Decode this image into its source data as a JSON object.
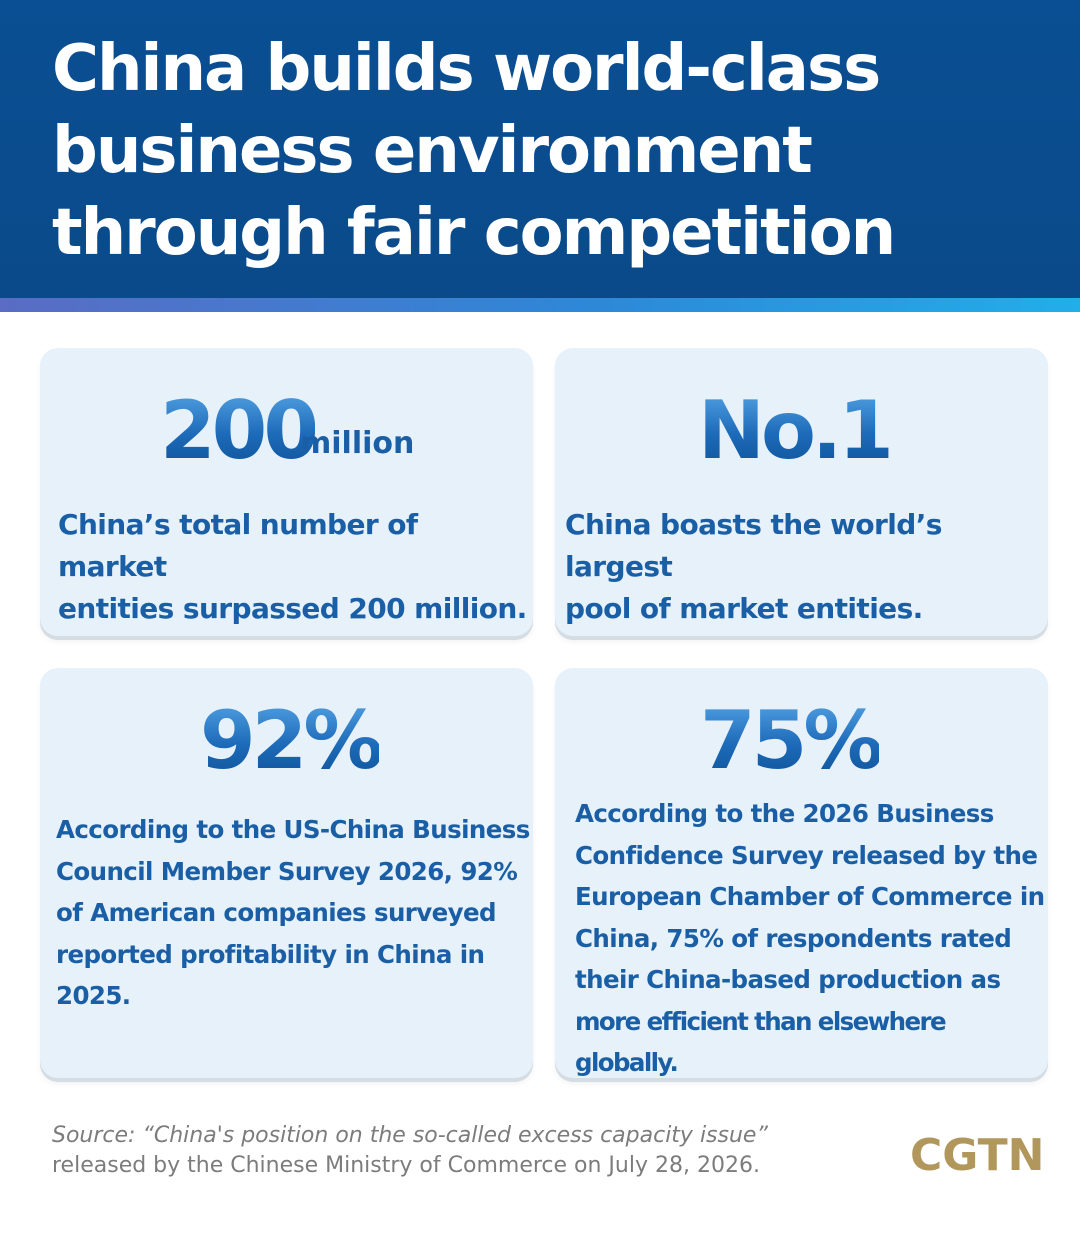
{
  "header": {
    "title_lines": [
      "China builds world-class",
      "business environment",
      "through fair competition"
    ]
  },
  "cards": [
    {
      "value": "200",
      "unit": "million",
      "description_lines": [
        "China’s total number of market",
        "entities surpassed 200 million."
      ]
    },
    {
      "value": "No.1",
      "description_lines": [
        "China boasts the world’s largest",
        "pool of market entities."
      ]
    },
    {
      "value": "92%",
      "description_lines": [
        "According to the US-China Business",
        "Council Member Survey 2026, 92%",
        "of American companies surveyed",
        "reported profitability in China in",
        "2025."
      ]
    },
    {
      "value": "75%",
      "description_lines": [
        "According to the 2026 Business",
        "Confidence Survey released by the",
        "European Chamber of Commerce in",
        "China, 75% of respondents rated",
        "their China-based production as",
        "more efficient than elsewhere globally."
      ]
    }
  ],
  "source": {
    "line1": "Source: “China's position on the so-called excess capacity issue”",
    "line2": "released by the Chinese Ministry of Commerce on July 28, 2026."
  },
  "logo": {
    "text": "CGTN"
  },
  "colors": {
    "header_bg": "#0a4f93",
    "card_bg": "#e6f1fa",
    "text_blue": "#1a5fa6",
    "logo_gold": "#b1975b"
  }
}
